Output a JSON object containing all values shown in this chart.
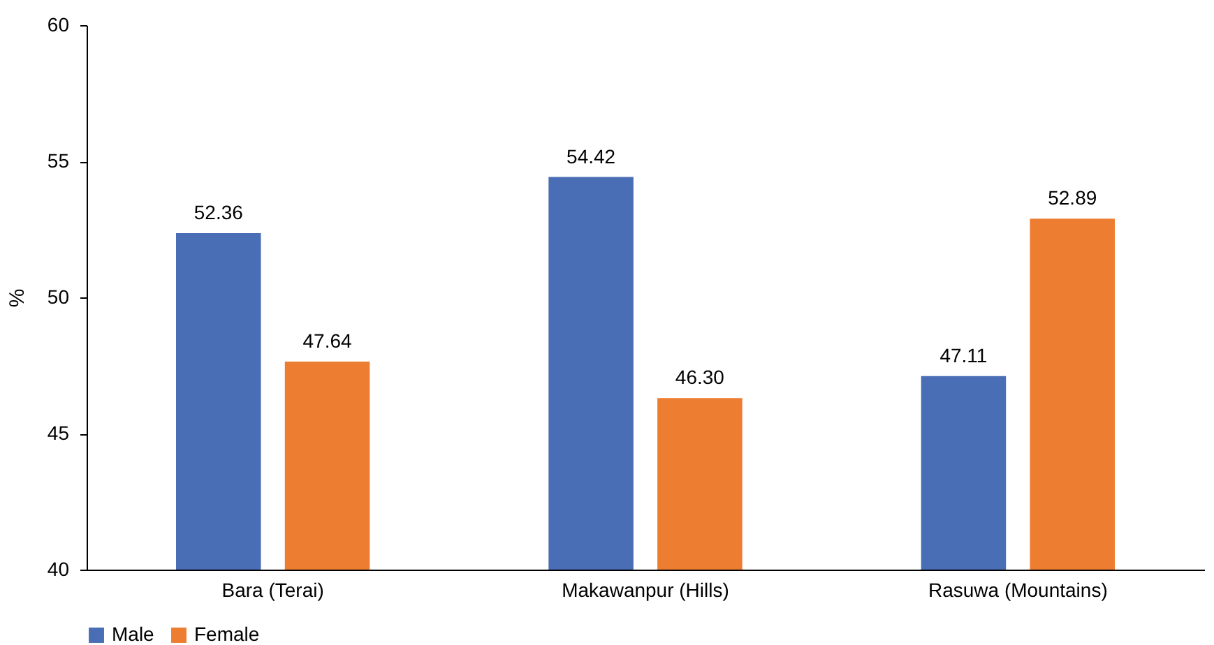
{
  "chart_data": {
    "type": "bar",
    "ylabel": "%",
    "categories": [
      "Bara (Terai)",
      "Makawanpur (Hills)",
      "Rasuwa (Mountains)"
    ],
    "series": [
      {
        "name": "Male",
        "color": "#4a6eb5",
        "values": [
          52.36,
          54.42,
          47.11
        ],
        "value_labels": [
          "52.36",
          "54.42",
          "47.11"
        ]
      },
      {
        "name": "Female",
        "color": "#ed7d31",
        "values": [
          47.64,
          46.3,
          52.89
        ],
        "value_labels": [
          "47.64",
          "46.30",
          "52.89"
        ]
      }
    ],
    "ylim": [
      40,
      60
    ],
    "yticks": [
      40,
      45,
      50,
      55,
      60
    ],
    "legend": "bottom"
  }
}
